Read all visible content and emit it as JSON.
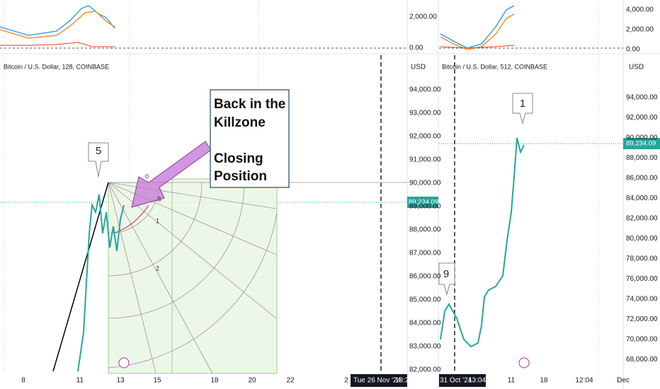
{
  "left_pane": {
    "title": "Bitcoin / U.S. Dollar, 128, COINBASE",
    "currency": "USD",
    "indicator_axis": [
      "2,000.00",
      "0.00"
    ],
    "price_axis": [
      "94,000.00",
      "93,000.00",
      "92,000.00",
      "91,000.00",
      "90,000.00",
      "89,000.00",
      "88,000.00",
      "87,000.00",
      "86,000.00",
      "85,000.00",
      "84,000.00",
      "83,000.00",
      "82,000.00"
    ],
    "current_price": "89,234.09",
    "time_axis": [
      "8",
      "11",
      "13",
      "15",
      "18",
      "20",
      "22",
      "2"
    ],
    "crosshair_date": "Tue 26 Nov '24",
    "crosshair_time": "18:2",
    "wave_label": "5",
    "fib_labels": [
      "0",
      ".5",
      "1",
      "2"
    ],
    "note_lines": [
      "Back in the",
      "Killzone",
      "Closing",
      "Position"
    ]
  },
  "right_pane": {
    "title": "Bitcoin / U.S. Dollar, 512, COINBASE",
    "currency": "USD",
    "indicator_axis": [
      "4,000.00",
      "2,000.00",
      "0.00"
    ],
    "price_axis": [
      "94,000.00",
      "92,000.00",
      "90,000.00",
      "88,000.00",
      "86,000.00",
      "84,000.00",
      "82,000.00",
      "80,000.00",
      "78,000.00",
      "76,000.00",
      "74,000.00",
      "72,000.00",
      "70,000.00",
      "68,000.00"
    ],
    "current_price": "89,234.09",
    "time_axis": [
      "11",
      "18",
      "12:04",
      "Dec"
    ],
    "crosshair_date": "31 Oct '24",
    "crosshair_time": "13:04",
    "wave_labels": [
      "1",
      "9"
    ]
  }
}
